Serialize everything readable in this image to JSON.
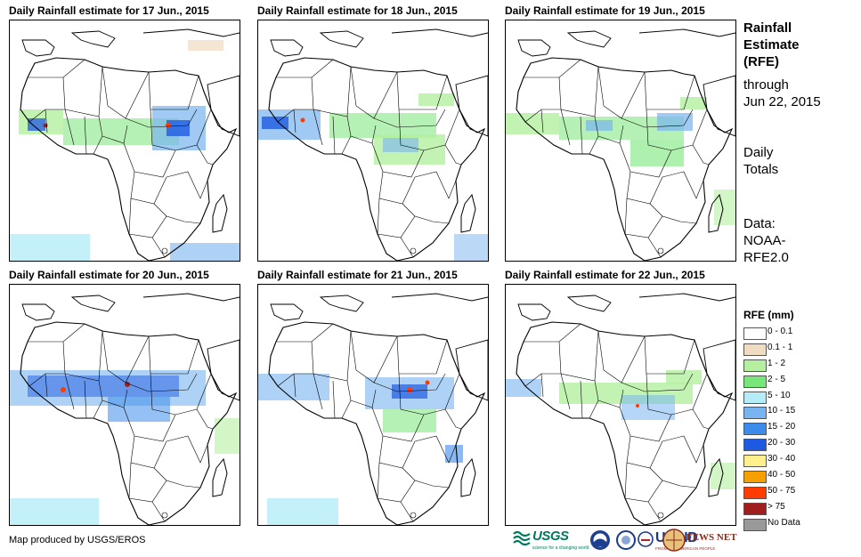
{
  "panels": [
    {
      "title": "Daily Rainfall estimate for 17 Jun., 2015"
    },
    {
      "title": "Daily Rainfall estimate for 18 Jun., 2015"
    },
    {
      "title": "Daily Rainfall estimate for 19 Jun., 2015"
    },
    {
      "title": "Daily Rainfall estimate for 20 Jun., 2015"
    },
    {
      "title": "Daily Rainfall estimate for 21 Jun., 2015"
    },
    {
      "title": "Daily Rainfall estimate for 22 Jun., 2015"
    }
  ],
  "side": {
    "title_line1": "Rainfall",
    "title_line2": "Estimate",
    "title_line3": "(RFE)",
    "through_line1": "through",
    "through_line2": "Jun 22, 2015",
    "daily_line1": "Daily",
    "daily_line2": "Totals",
    "source_line1": "Data:",
    "source_line2": "NOAA-",
    "source_line3": "RFE2.0"
  },
  "legend": {
    "title": "RFE (mm)",
    "items": [
      {
        "label": "0 - 0.1",
        "color": "#ffffff"
      },
      {
        "label": "0.1 - 1",
        "color": "#f0dcc0"
      },
      {
        "label": "1 - 2",
        "color": "#b4f0a0"
      },
      {
        "label": "2 - 5",
        "color": "#78e678"
      },
      {
        "label": "5 - 10",
        "color": "#b4ecf8"
      },
      {
        "label": "10 - 15",
        "color": "#78b4f0"
      },
      {
        "label": "15 - 20",
        "color": "#3c8ceb"
      },
      {
        "label": "20 - 30",
        "color": "#1e5ae1"
      },
      {
        "label": "30 - 40",
        "color": "#fff08c"
      },
      {
        "label": "40 - 50",
        "color": "#f5a000"
      },
      {
        "label": "50 - 75",
        "color": "#ff3c00"
      },
      {
        "label": "> 75",
        "color": "#a01e1e"
      },
      {
        "label": "No Data",
        "color": "#999999"
      }
    ]
  },
  "footer": {
    "credit": "Map produced by USGS/EROS"
  },
  "logos": {
    "usgs": "USGS",
    "usgs_tagline": "science for a changing world",
    "usaid": "USAID",
    "usaid_tagline": "FROM THE AMERICAN PEOPLE",
    "fews": "FEWS NET"
  }
}
